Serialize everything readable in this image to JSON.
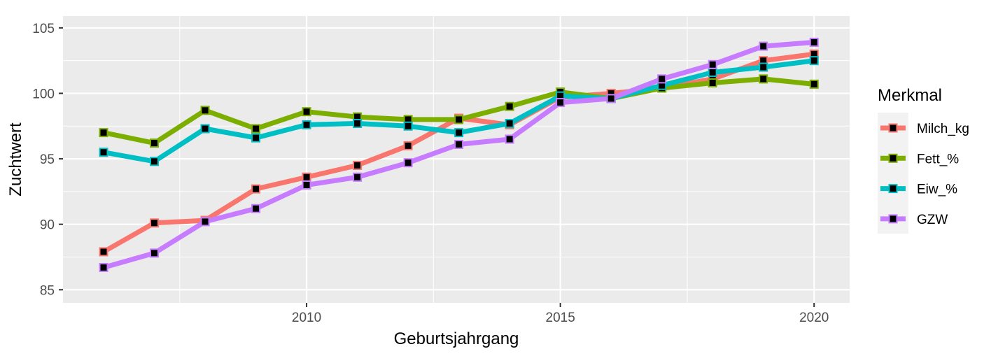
{
  "chart_data": {
    "type": "line",
    "xlabel": "Geburtsjahrgang",
    "ylabel": "Zuchtwert",
    "xlim": [
      2005.2,
      2020.7
    ],
    "ylim": [
      84.0,
      105.9
    ],
    "x_ticks": [
      2010,
      2015,
      2020
    ],
    "y_ticks": [
      85,
      90,
      95,
      100,
      105
    ],
    "grid": true,
    "legend": {
      "title": "Merkmal",
      "position": "right"
    },
    "x": [
      2006,
      2007,
      2008,
      2009,
      2010,
      2011,
      2012,
      2013,
      2014,
      2015,
      2016,
      2017,
      2018,
      2019,
      2020
    ],
    "series": [
      {
        "name": "Milch_kg",
        "color": "#F8766D",
        "values": [
          87.9,
          90.1,
          90.3,
          92.7,
          93.6,
          94.5,
          96.0,
          98.1,
          97.6,
          99.7,
          100.0,
          100.4,
          101.1,
          102.5,
          103.0
        ]
      },
      {
        "name": "Fett_%",
        "color": "#7CAE00",
        "values": [
          97.0,
          96.2,
          98.7,
          97.3,
          98.6,
          98.2,
          98.0,
          98.0,
          99.0,
          100.1,
          99.6,
          100.4,
          100.8,
          101.1,
          100.7
        ]
      },
      {
        "name": "Eiw_%",
        "color": "#00BFC4",
        "values": [
          95.5,
          94.8,
          97.3,
          96.6,
          97.6,
          97.7,
          97.5,
          97.0,
          97.7,
          99.8,
          99.6,
          100.6,
          101.6,
          102.0,
          102.5
        ]
      },
      {
        "name": "GZW",
        "color": "#C77CFF",
        "values": [
          86.7,
          87.8,
          90.2,
          91.2,
          93.0,
          93.6,
          94.7,
          96.1,
          96.5,
          99.3,
          99.6,
          101.1,
          102.2,
          103.6,
          103.9
        ]
      }
    ]
  }
}
